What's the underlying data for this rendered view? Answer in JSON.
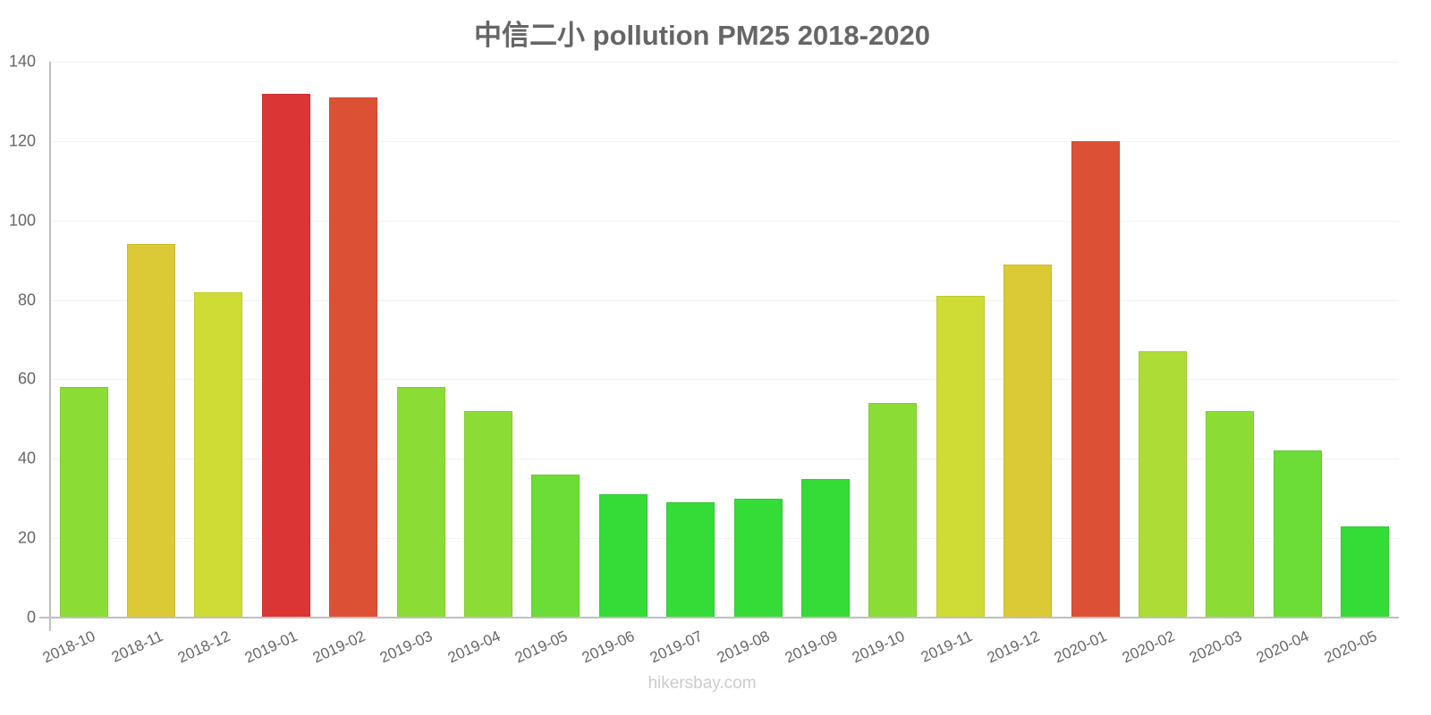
{
  "chart_data": {
    "type": "bar",
    "title": "中信二小 pollution PM25 2018-2020",
    "xlabel": "",
    "ylabel": "",
    "ylim": [
      0,
      140
    ],
    "yticks": [
      0,
      20,
      40,
      60,
      80,
      100,
      120,
      140
    ],
    "grid": true,
    "legend": null,
    "categories": [
      "2018-10",
      "2018-11",
      "2018-12",
      "2019-01",
      "2019-02",
      "2019-03",
      "2019-04",
      "2019-05",
      "2019-06",
      "2019-07",
      "2019-08",
      "2019-09",
      "2019-10",
      "2019-11",
      "2019-12",
      "2020-01",
      "2020-02",
      "2020-03",
      "2020-04",
      "2020-05"
    ],
    "values": [
      58,
      94,
      82,
      132,
      131,
      58,
      52,
      36,
      31,
      29,
      30,
      35,
      54,
      81,
      89,
      120,
      67,
      52,
      42,
      23
    ],
    "colors": [
      "#8cdc36",
      "#dbca35",
      "#cfdc35",
      "#db3535",
      "#dc5135",
      "#8cdc36",
      "#8cdc36",
      "#6cdc36",
      "#35dc38",
      "#35dc38",
      "#35dc38",
      "#35dc38",
      "#8cdc36",
      "#cfdc35",
      "#dbca35",
      "#dc5135",
      "#addc36",
      "#8cdc36",
      "#6cdc36",
      "#35dc38"
    ]
  },
  "watermark": "hikersbay.com"
}
